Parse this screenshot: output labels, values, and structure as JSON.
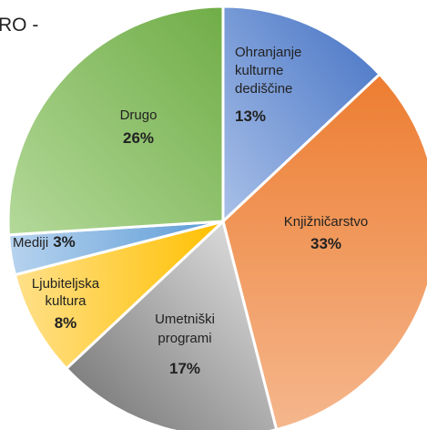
{
  "chart_data": {
    "type": "pie",
    "title": "RO -",
    "categories": [
      "Ohranjanje kulturne dediščine",
      "Knjižničarstvo",
      "Umetniški programi",
      "Ljubiteljska kultura",
      "Mediji",
      "Drugo"
    ],
    "values": [
      13,
      33,
      17,
      8,
      3,
      26
    ],
    "value_labels": [
      "13%",
      "33%",
      "17%",
      "8%",
      "3%",
      "26%"
    ],
    "colors": [
      "#4472c4",
      "#ed7d31",
      "#a5a5a5",
      "#ffc000",
      "#5b9bd5",
      "#70ad47"
    ]
  }
}
